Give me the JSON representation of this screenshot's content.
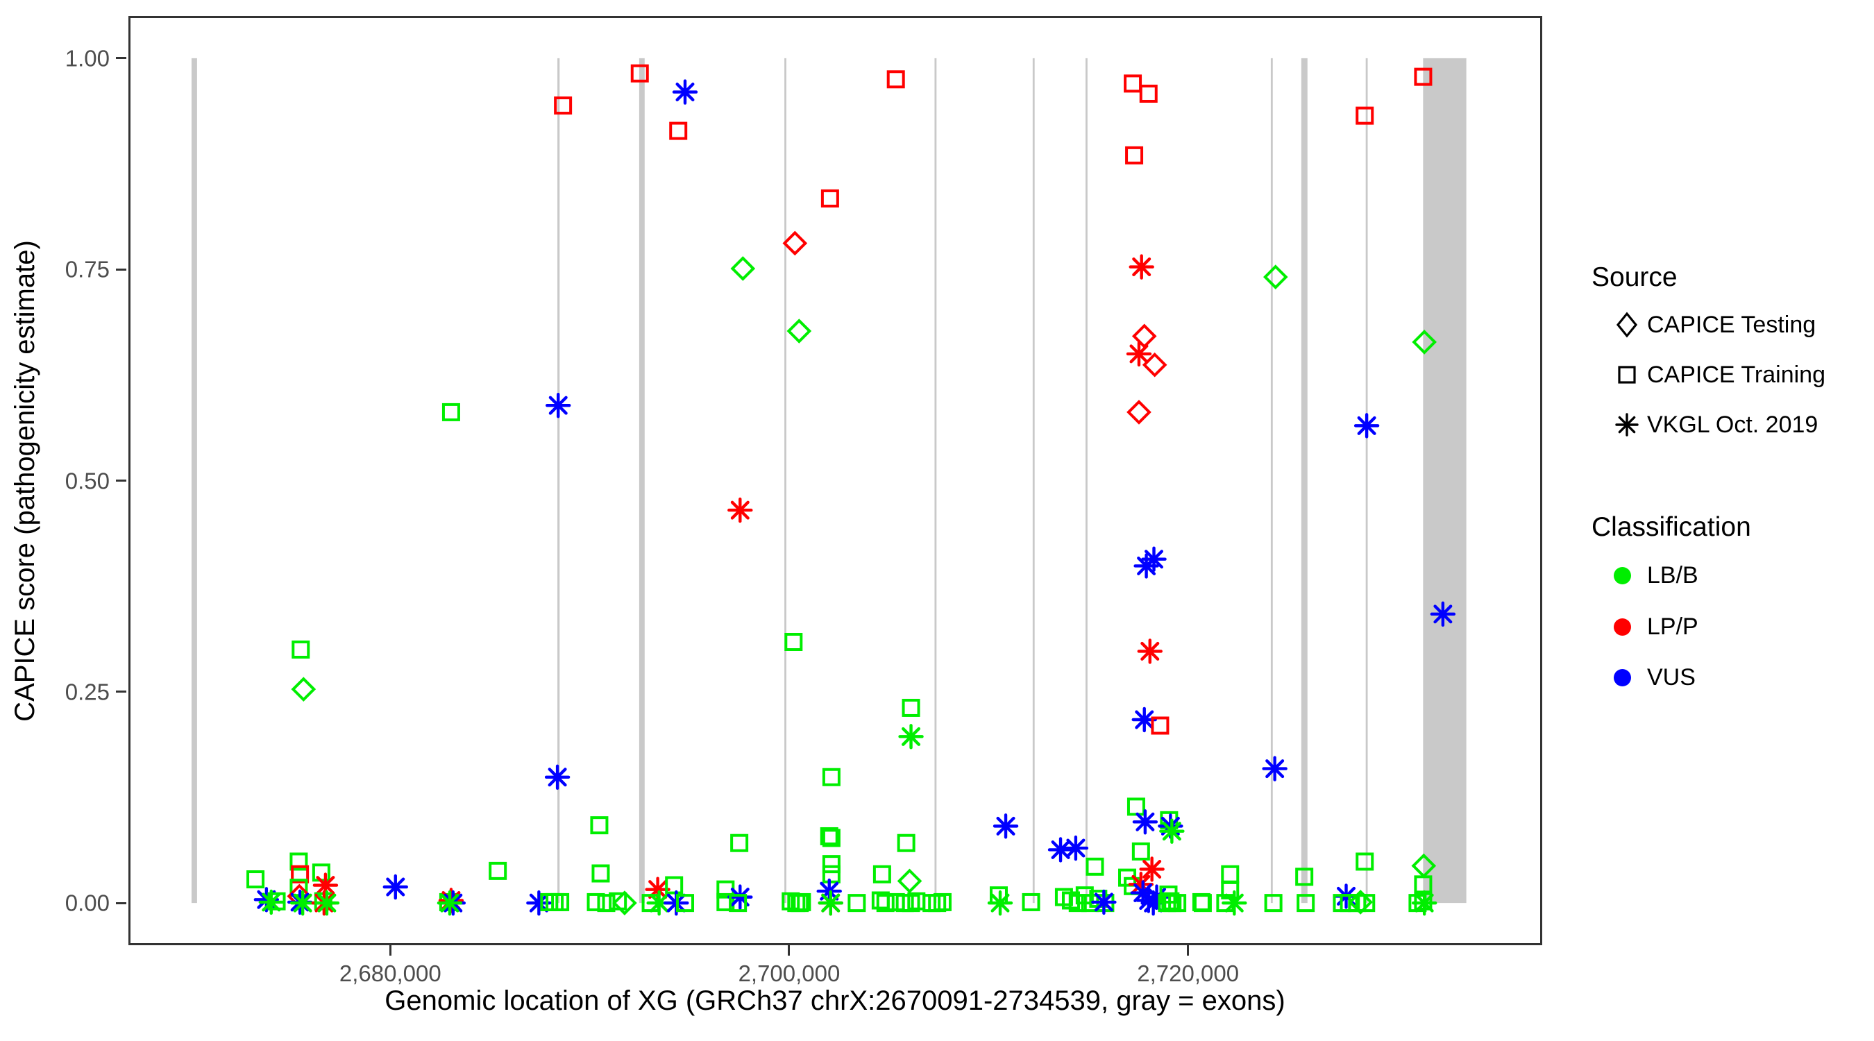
{
  "axes": {
    "ylabel": "CAPICE score (pathogenicity estimate)",
    "xlabel": "Genomic location of XG (GRCh37 chrX:2670091-2734539, gray = exons)"
  },
  "legend_source": {
    "title": "Source",
    "items": [
      {
        "label": "CAPICE Testing",
        "marker": "diamond"
      },
      {
        "label": "CAPICE Training",
        "marker": "square"
      },
      {
        "label": "VKGL Oct. 2019",
        "marker": "asterisk"
      }
    ]
  },
  "legend_class": {
    "title": "Classification",
    "items": [
      {
        "label": "LB/B",
        "color": "#00EE00"
      },
      {
        "label": "LP/P",
        "color": "#FF0000"
      },
      {
        "label": "VUS",
        "color": "#0000FF"
      }
    ]
  },
  "chart_data": {
    "type": "scatter",
    "title": "",
    "xlabel": "Genomic location of XG (GRCh37 chrX:2670091-2734539, gray = exons)",
    "ylabel": "CAPICE score (pathogenicity estimate)",
    "xlim": [
      2666869,
      2737761
    ],
    "ylim": [
      -0.05,
      1.05
    ],
    "grid": false,
    "legend_position": "right",
    "x_ticks": [
      {
        "value": 2680000,
        "label": "2,680,000"
      },
      {
        "value": 2700000,
        "label": "2,700,000"
      },
      {
        "value": 2720000,
        "label": "2,720,000"
      }
    ],
    "y_ticks": [
      {
        "value": 0.0,
        "label": "0.00"
      },
      {
        "value": 0.25,
        "label": "0.25"
      },
      {
        "value": 0.5,
        "label": "0.50"
      },
      {
        "value": 0.75,
        "label": "0.75"
      },
      {
        "value": 1.0,
        "label": "1.00"
      }
    ],
    "colors": {
      "LB/B": "#00EE00",
      "LP/P": "#FF0000",
      "VUS": "#0000FF",
      "exon": "#C9C9C9"
    },
    "codes": {
      "c": {
        "g": "LB/B",
        "r": "LP/P",
        "b": "VUS"
      },
      "m": {
        "d": "CAPICE Testing",
        "s": "CAPICE Training",
        "a": "VKGL Oct. 2019"
      }
    },
    "exons": [
      {
        "start": 2670035,
        "end": 2670311
      },
      {
        "start": 2688380,
        "end": 2688490
      },
      {
        "start": 2692480,
        "end": 2692755
      },
      {
        "start": 2699760,
        "end": 2699860
      },
      {
        "start": 2707290,
        "end": 2707390
      },
      {
        "start": 2712210,
        "end": 2712310
      },
      {
        "start": 2714860,
        "end": 2714960
      },
      {
        "start": 2724150,
        "end": 2724250
      },
      {
        "start": 2725680,
        "end": 2725990
      },
      {
        "start": 2728910,
        "end": 2729010
      },
      {
        "start": 2731786,
        "end": 2733955
      }
    ],
    "points": [
      {
        "x": 2688660,
        "y": 0.944,
        "c": "r",
        "m": "s"
      },
      {
        "x": 2692510,
        "y": 0.982,
        "c": "r",
        "m": "s"
      },
      {
        "x": 2694780,
        "y": 0.96,
        "c": "b",
        "m": "a"
      },
      {
        "x": 2694440,
        "y": 0.914,
        "c": "r",
        "m": "s"
      },
      {
        "x": 2705350,
        "y": 0.975,
        "c": "r",
        "m": "s"
      },
      {
        "x": 2702050,
        "y": 0.834,
        "c": "r",
        "m": "s"
      },
      {
        "x": 2700290,
        "y": 0.781,
        "c": "r",
        "m": "d"
      },
      {
        "x": 2697680,
        "y": 0.751,
        "c": "g",
        "m": "d"
      },
      {
        "x": 2700500,
        "y": 0.677,
        "c": "g",
        "m": "d"
      },
      {
        "x": 2697540,
        "y": 0.465,
        "c": "r",
        "m": "a"
      },
      {
        "x": 2683050,
        "y": 0.581,
        "c": "g",
        "m": "s"
      },
      {
        "x": 2688420,
        "y": 0.589,
        "c": "b",
        "m": "a"
      },
      {
        "x": 2688380,
        "y": 0.149,
        "c": "b",
        "m": "a"
      },
      {
        "x": 2675510,
        "y": 0.3,
        "c": "g",
        "m": "s"
      },
      {
        "x": 2675650,
        "y": 0.253,
        "c": "g",
        "m": "d"
      },
      {
        "x": 2700220,
        "y": 0.309,
        "c": "g",
        "m": "s"
      },
      {
        "x": 2706110,
        "y": 0.231,
        "c": "g",
        "m": "s"
      },
      {
        "x": 2706110,
        "y": 0.197,
        "c": "g",
        "m": "a"
      },
      {
        "x": 2702120,
        "y": 0.149,
        "c": "g",
        "m": "s"
      },
      {
        "x": 2710860,
        "y": 0.091,
        "c": "b",
        "m": "a"
      },
      {
        "x": 2702120,
        "y": 0.077,
        "c": "g",
        "m": "s"
      },
      {
        "x": 2705870,
        "y": 0.071,
        "c": "g",
        "m": "s"
      },
      {
        "x": 2697500,
        "y": 0.071,
        "c": "g",
        "m": "s"
      },
      {
        "x": 2713610,
        "y": 0.063,
        "c": "b",
        "m": "a"
      },
      {
        "x": 2714370,
        "y": 0.065,
        "c": "b",
        "m": "a"
      },
      {
        "x": 2717230,
        "y": 0.97,
        "c": "r",
        "m": "s"
      },
      {
        "x": 2718020,
        "y": 0.958,
        "c": "r",
        "m": "s"
      },
      {
        "x": 2717300,
        "y": 0.885,
        "c": "r",
        "m": "s"
      },
      {
        "x": 2717670,
        "y": 0.753,
        "c": "r",
        "m": "a"
      },
      {
        "x": 2724390,
        "y": 0.741,
        "c": "g",
        "m": "d"
      },
      {
        "x": 2717810,
        "y": 0.671,
        "c": "r",
        "m": "d"
      },
      {
        "x": 2717540,
        "y": 0.65,
        "c": "r",
        "m": "a"
      },
      {
        "x": 2718330,
        "y": 0.637,
        "c": "r",
        "m": "d"
      },
      {
        "x": 2717540,
        "y": 0.581,
        "c": "r",
        "m": "d"
      },
      {
        "x": 2717910,
        "y": 0.399,
        "c": "b",
        "m": "a"
      },
      {
        "x": 2718290,
        "y": 0.407,
        "c": "b",
        "m": "a"
      },
      {
        "x": 2718090,
        "y": 0.298,
        "c": "r",
        "m": "a"
      },
      {
        "x": 2717810,
        "y": 0.217,
        "c": "b",
        "m": "a"
      },
      {
        "x": 2718600,
        "y": 0.21,
        "c": "r",
        "m": "s"
      },
      {
        "x": 2724350,
        "y": 0.159,
        "c": "b",
        "m": "a"
      },
      {
        "x": 2717400,
        "y": 0.114,
        "c": "g",
        "m": "s"
      },
      {
        "x": 2717850,
        "y": 0.096,
        "c": "b",
        "m": "a"
      },
      {
        "x": 2719050,
        "y": 0.098,
        "c": "g",
        "m": "s"
      },
      {
        "x": 2719120,
        "y": 0.091,
        "c": "b",
        "m": "a"
      },
      {
        "x": 2719190,
        "y": 0.085,
        "c": "g",
        "m": "a"
      },
      {
        "x": 2728860,
        "y": 0.932,
        "c": "r",
        "m": "s"
      },
      {
        "x": 2731790,
        "y": 0.978,
        "c": "r",
        "m": "s"
      },
      {
        "x": 2731850,
        "y": 0.664,
        "c": "g",
        "m": "d"
      },
      {
        "x": 2728960,
        "y": 0.565,
        "c": "b",
        "m": "a"
      },
      {
        "x": 2732780,
        "y": 0.342,
        "c": "b",
        "m": "a"
      },
      {
        "x": 2673240,
        "y": 0.028,
        "c": "g",
        "m": "s"
      },
      {
        "x": 2673790,
        "y": 0.004,
        "c": "b",
        "m": "a"
      },
      {
        "x": 2674030,
        "y": 0.001,
        "c": "g",
        "m": "a"
      },
      {
        "x": 2674300,
        "y": 0.002,
        "c": "g",
        "m": "s"
      },
      {
        "x": 2675410,
        "y": 0.049,
        "c": "g",
        "m": "s"
      },
      {
        "x": 2675470,
        "y": 0.034,
        "c": "r",
        "m": "s"
      },
      {
        "x": 2675410,
        "y": 0.018,
        "c": "g",
        "m": "s"
      },
      {
        "x": 2675440,
        "y": 0.008,
        "c": "r",
        "m": "d"
      },
      {
        "x": 2675470,
        "y": 0.001,
        "c": "b",
        "m": "a"
      },
      {
        "x": 2675610,
        "y": 0.0,
        "c": "g",
        "m": "a"
      },
      {
        "x": 2676540,
        "y": 0.036,
        "c": "g",
        "m": "s"
      },
      {
        "x": 2676750,
        "y": 0.021,
        "c": "r",
        "m": "a"
      },
      {
        "x": 2676640,
        "y": 0.002,
        "c": "g",
        "m": "s"
      },
      {
        "x": 2676680,
        "y": 0.0,
        "c": "r",
        "m": "a"
      },
      {
        "x": 2676820,
        "y": 0.0,
        "c": "g",
        "m": "a"
      },
      {
        "x": 2680260,
        "y": 0.019,
        "c": "b",
        "m": "a"
      },
      {
        "x": 2682910,
        "y": 0.001,
        "c": "g",
        "m": "s"
      },
      {
        "x": 2683050,
        "y": 0.003,
        "c": "r",
        "m": "a"
      },
      {
        "x": 2683150,
        "y": 0.0,
        "c": "b",
        "m": "a"
      },
      {
        "x": 2682980,
        "y": 0.0,
        "c": "g",
        "m": "a"
      },
      {
        "x": 2685390,
        "y": 0.038,
        "c": "g",
        "m": "s"
      },
      {
        "x": 2687450,
        "y": 0.0,
        "c": "b",
        "m": "a"
      },
      {
        "x": 2687970,
        "y": 0.001,
        "c": "g",
        "m": "s"
      },
      {
        "x": 2688240,
        "y": 0.001,
        "c": "g",
        "m": "s"
      },
      {
        "x": 2688520,
        "y": 0.001,
        "c": "g",
        "m": "s"
      },
      {
        "x": 2690550,
        "y": 0.035,
        "c": "g",
        "m": "s"
      },
      {
        "x": 2690480,
        "y": 0.092,
        "c": "g",
        "m": "s"
      },
      {
        "x": 2690310,
        "y": 0.001,
        "c": "g",
        "m": "s"
      },
      {
        "x": 2690830,
        "y": 0.0,
        "c": "g",
        "m": "s"
      },
      {
        "x": 2691410,
        "y": 0.002,
        "c": "g",
        "m": "s"
      },
      {
        "x": 2691750,
        "y": 0.0,
        "c": "g",
        "m": "d"
      },
      {
        "x": 2693410,
        "y": 0.016,
        "c": "r",
        "m": "a"
      },
      {
        "x": 2694230,
        "y": 0.021,
        "c": "g",
        "m": "s"
      },
      {
        "x": 2693060,
        "y": 0.0,
        "c": "g",
        "m": "s"
      },
      {
        "x": 2693480,
        "y": 0.0,
        "c": "g",
        "m": "a"
      },
      {
        "x": 2694340,
        "y": 0.0,
        "c": "b",
        "m": "a"
      },
      {
        "x": 2694780,
        "y": 0.0,
        "c": "g",
        "m": "s"
      },
      {
        "x": 2696810,
        "y": 0.016,
        "c": "g",
        "m": "s"
      },
      {
        "x": 2696810,
        "y": 0.001,
        "c": "g",
        "m": "s"
      },
      {
        "x": 2697540,
        "y": 0.007,
        "c": "b",
        "m": "a"
      },
      {
        "x": 2697430,
        "y": 0.0,
        "c": "g",
        "m": "s"
      },
      {
        "x": 2700080,
        "y": 0.002,
        "c": "g",
        "m": "s"
      },
      {
        "x": 2700360,
        "y": 0.0,
        "c": "g",
        "m": "s"
      },
      {
        "x": 2700530,
        "y": 0.0,
        "c": "g",
        "m": "s"
      },
      {
        "x": 2702010,
        "y": 0.079,
        "c": "g",
        "m": "s"
      },
      {
        "x": 2702120,
        "y": 0.046,
        "c": "g",
        "m": "s"
      },
      {
        "x": 2702120,
        "y": 0.034,
        "c": "g",
        "m": "s"
      },
      {
        "x": 2702010,
        "y": 0.014,
        "c": "b",
        "m": "a"
      },
      {
        "x": 2702080,
        "y": 0.0,
        "c": "r",
        "m": "a"
      },
      {
        "x": 2702080,
        "y": 0.0,
        "c": "g",
        "m": "a"
      },
      {
        "x": 2700640,
        "y": 0.001,
        "c": "g",
        "m": "s"
      },
      {
        "x": 2703390,
        "y": 0.0,
        "c": "g",
        "m": "s"
      },
      {
        "x": 2704660,
        "y": 0.034,
        "c": "g",
        "m": "s"
      },
      {
        "x": 2704590,
        "y": 0.003,
        "c": "g",
        "m": "s"
      },
      {
        "x": 2704830,
        "y": 0.0,
        "c": "g",
        "m": "s"
      },
      {
        "x": 2705350,
        "y": 0.001,
        "c": "g",
        "m": "s"
      },
      {
        "x": 2705800,
        "y": 0.0,
        "c": "g",
        "m": "s"
      },
      {
        "x": 2706110,
        "y": 0.0,
        "c": "g",
        "m": "s"
      },
      {
        "x": 2706380,
        "y": 0.002,
        "c": "g",
        "m": "s"
      },
      {
        "x": 2706040,
        "y": 0.026,
        "c": "g",
        "m": "d"
      },
      {
        "x": 2707140,
        "y": 0.0,
        "c": "g",
        "m": "s"
      },
      {
        "x": 2707420,
        "y": 0.0,
        "c": "g",
        "m": "s"
      },
      {
        "x": 2707690,
        "y": 0.001,
        "c": "g",
        "m": "s"
      },
      {
        "x": 2710510,
        "y": 0.009,
        "c": "g",
        "m": "s"
      },
      {
        "x": 2710580,
        "y": 0.0,
        "c": "g",
        "m": "a"
      },
      {
        "x": 2712130,
        "y": 0.001,
        "c": "g",
        "m": "s"
      },
      {
        "x": 2713780,
        "y": 0.007,
        "c": "g",
        "m": "s"
      },
      {
        "x": 2714130,
        "y": 0.003,
        "c": "g",
        "m": "s"
      },
      {
        "x": 2714470,
        "y": 0.0,
        "c": "g",
        "m": "s"
      },
      {
        "x": 2714820,
        "y": 0.009,
        "c": "g",
        "m": "s"
      },
      {
        "x": 2715090,
        "y": 0.0,
        "c": "g",
        "m": "s"
      },
      {
        "x": 2715500,
        "y": 0.005,
        "c": "g",
        "m": "s"
      },
      {
        "x": 2715850,
        "y": 0.0,
        "c": "g",
        "m": "s"
      },
      {
        "x": 2715780,
        "y": 0.001,
        "c": "b",
        "m": "a"
      },
      {
        "x": 2715330,
        "y": 0.043,
        "c": "g",
        "m": "s"
      },
      {
        "x": 2716950,
        "y": 0.03,
        "c": "g",
        "m": "s"
      },
      {
        "x": 2717230,
        "y": 0.02,
        "c": "g",
        "m": "s"
      },
      {
        "x": 2717640,
        "y": 0.061,
        "c": "g",
        "m": "s"
      },
      {
        "x": 2718190,
        "y": 0.04,
        "c": "r",
        "m": "a"
      },
      {
        "x": 2717640,
        "y": 0.022,
        "c": "r",
        "m": "a"
      },
      {
        "x": 2717740,
        "y": 0.012,
        "c": "b",
        "m": "a"
      },
      {
        "x": 2718020,
        "y": 0.003,
        "c": "b",
        "m": "a"
      },
      {
        "x": 2718260,
        "y": 0.0,
        "c": "b",
        "m": "a"
      },
      {
        "x": 2718430,
        "y": 0.007,
        "c": "b",
        "m": "a"
      },
      {
        "x": 2719020,
        "y": 0.01,
        "c": "g",
        "m": "s"
      },
      {
        "x": 2719120,
        "y": 0.002,
        "c": "g",
        "m": "s"
      },
      {
        "x": 2719220,
        "y": 0.0,
        "c": "g",
        "m": "s"
      },
      {
        "x": 2719460,
        "y": 0.0,
        "c": "g",
        "m": "s"
      },
      {
        "x": 2718950,
        "y": 0.0,
        "c": "g",
        "m": "s"
      },
      {
        "x": 2720670,
        "y": 0.001,
        "c": "g",
        "m": "s"
      },
      {
        "x": 2720740,
        "y": 0.0,
        "c": "g",
        "m": "s"
      },
      {
        "x": 2722110,
        "y": 0.034,
        "c": "g",
        "m": "s"
      },
      {
        "x": 2722110,
        "y": 0.015,
        "c": "g",
        "m": "s"
      },
      {
        "x": 2721870,
        "y": 0.0,
        "c": "g",
        "m": "s"
      },
      {
        "x": 2722320,
        "y": 0.0,
        "c": "g",
        "m": "a"
      },
      {
        "x": 2724280,
        "y": 0.0,
        "c": "g",
        "m": "s"
      },
      {
        "x": 2725830,
        "y": 0.031,
        "c": "g",
        "m": "s"
      },
      {
        "x": 2725900,
        "y": 0.0,
        "c": "g",
        "m": "s"
      },
      {
        "x": 2727930,
        "y": 0.008,
        "c": "b",
        "m": "a"
      },
      {
        "x": 2727720,
        "y": 0.0,
        "c": "g",
        "m": "s"
      },
      {
        "x": 2728070,
        "y": 0.0,
        "c": "g",
        "m": "s"
      },
      {
        "x": 2728480,
        "y": 0.0,
        "c": "g",
        "m": "s"
      },
      {
        "x": 2728650,
        "y": 0.001,
        "c": "g",
        "m": "d"
      },
      {
        "x": 2728930,
        "y": 0.0,
        "c": "g",
        "m": "s"
      },
      {
        "x": 2728860,
        "y": 0.049,
        "c": "g",
        "m": "s"
      },
      {
        "x": 2731820,
        "y": 0.044,
        "c": "g",
        "m": "d"
      },
      {
        "x": 2731790,
        "y": 0.022,
        "c": "g",
        "m": "s"
      },
      {
        "x": 2731790,
        "y": 0.002,
        "c": "g",
        "m": "s"
      },
      {
        "x": 2731850,
        "y": 0.0,
        "c": "g",
        "m": "a"
      },
      {
        "x": 2731510,
        "y": 0.0,
        "c": "g",
        "m": "s"
      }
    ]
  }
}
